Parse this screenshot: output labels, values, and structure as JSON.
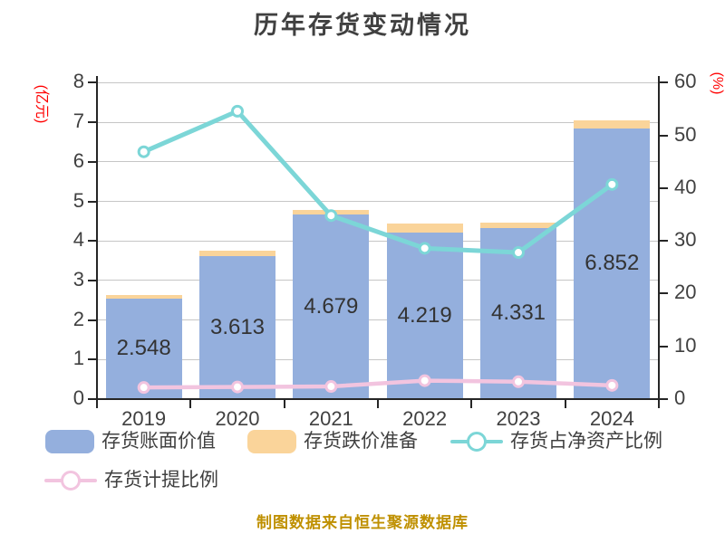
{
  "chart_data": {
    "type": "combo-bar-line",
    "title": "历年存货变动情况",
    "categories": [
      "2019",
      "2020",
      "2021",
      "2022",
      "2023",
      "2024"
    ],
    "series": [
      {
        "key": "book_value",
        "name": "存货账面价值",
        "type": "bar",
        "axis": "left",
        "color": "#94afdd",
        "values": [
          2.548,
          3.613,
          4.679,
          4.219,
          4.331,
          6.852
        ],
        "data_labels": [
          "2.548",
          "3.613",
          "4.679",
          "4.219",
          "4.331",
          "6.852"
        ]
      },
      {
        "key": "depreciation_reserve",
        "name": "存货跌价准备",
        "type": "bar-cap",
        "axis": "left",
        "color": "#fad49a",
        "values": [
          0.09,
          0.14,
          0.11,
          0.21,
          0.13,
          0.2
        ]
      },
      {
        "key": "net_asset_ratio",
        "name": "存货占净资产比例",
        "type": "line",
        "axis": "right",
        "color": "#7cd6d7",
        "values": [
          46.9,
          54.6,
          34.8,
          28.6,
          27.8,
          40.7
        ]
      },
      {
        "key": "provision_ratio",
        "name": "存货计提比例",
        "type": "line",
        "axis": "right",
        "color": "#f2c4df",
        "values": [
          2.2,
          2.3,
          2.4,
          3.5,
          3.3,
          2.6
        ]
      }
    ],
    "left_axis": {
      "label": "(亿元)",
      "label_color": "#ff0000",
      "min": 0,
      "max": 8,
      "step": 1
    },
    "right_axis": {
      "label": "(%)",
      "label_color": "#ff0000",
      "min": 0,
      "max": 60,
      "step": 10
    },
    "grid": true,
    "legend_position": "bottom",
    "footer": "制图数据来自恒生聚源数据库",
    "colors": {
      "title_text": "#404040",
      "tick_text": "#404040",
      "bar_label_text": "#333333",
      "gridline": "#c6c6c6",
      "axis_line": "#262626",
      "footer_text": "#bf9000",
      "background": "#ffffff"
    }
  }
}
